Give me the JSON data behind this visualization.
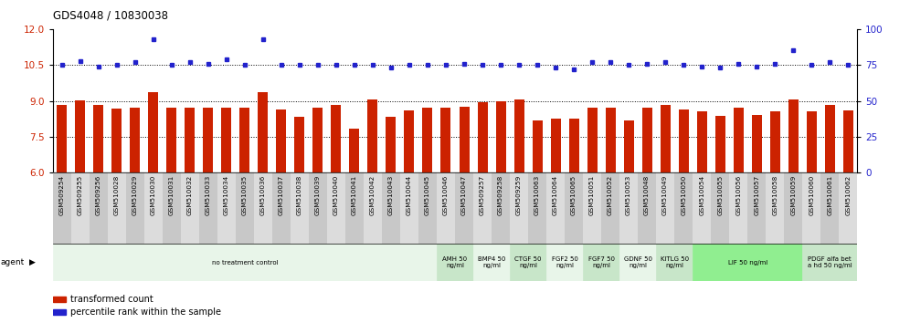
{
  "title": "GDS4048 / 10830038",
  "samples": [
    "GSM509254",
    "GSM509255",
    "GSM509256",
    "GSM510028",
    "GSM510029",
    "GSM510030",
    "GSM510031",
    "GSM510032",
    "GSM510033",
    "GSM510034",
    "GSM510035",
    "GSM510036",
    "GSM510037",
    "GSM510038",
    "GSM510039",
    "GSM510040",
    "GSM510041",
    "GSM510042",
    "GSM510043",
    "GSM510044",
    "GSM510045",
    "GSM510046",
    "GSM510047",
    "GSM509257",
    "GSM509258",
    "GSM509259",
    "GSM510063",
    "GSM510064",
    "GSM510065",
    "GSM510051",
    "GSM510052",
    "GSM510053",
    "GSM510048",
    "GSM510049",
    "GSM510050",
    "GSM510054",
    "GSM510055",
    "GSM510056",
    "GSM510057",
    "GSM510058",
    "GSM510059",
    "GSM510060",
    "GSM510061",
    "GSM510062"
  ],
  "bar_values": [
    8.85,
    9.02,
    8.82,
    8.67,
    8.72,
    9.35,
    8.72,
    8.72,
    8.72,
    8.72,
    8.72,
    9.35,
    8.65,
    8.35,
    8.72,
    8.82,
    7.85,
    9.05,
    8.35,
    8.62,
    8.72,
    8.72,
    8.75,
    8.95,
    9.0,
    9.05,
    8.2,
    8.28,
    8.25,
    8.72,
    8.72,
    8.2,
    8.72,
    8.82,
    8.65,
    8.55,
    8.38,
    8.72,
    8.42,
    8.58,
    9.05,
    8.55,
    8.82,
    8.62
  ],
  "dot_values_right": [
    75,
    78,
    74,
    75,
    77,
    93,
    75,
    77,
    76,
    79,
    75,
    93,
    75,
    75,
    75,
    75,
    75,
    75,
    73,
    75,
    75,
    75,
    76,
    75,
    75,
    75,
    75,
    73,
    72,
    77,
    77,
    75,
    76,
    77,
    75,
    74,
    73,
    76,
    74,
    76,
    85,
    75,
    77,
    75
  ],
  "agents": [
    {
      "label": "no treatment control",
      "start": 0,
      "end": 21,
      "color": "#e8f5e9"
    },
    {
      "label": "AMH 50\nng/ml",
      "start": 21,
      "end": 23,
      "color": "#c8e6c9"
    },
    {
      "label": "BMP4 50\nng/ml",
      "start": 23,
      "end": 25,
      "color": "#e8f5e9"
    },
    {
      "label": "CTGF 50\nng/ml",
      "start": 25,
      "end": 27,
      "color": "#c8e6c9"
    },
    {
      "label": "FGF2 50\nng/ml",
      "start": 27,
      "end": 29,
      "color": "#e8f5e9"
    },
    {
      "label": "FGF7 50\nng/ml",
      "start": 29,
      "end": 31,
      "color": "#c8e6c9"
    },
    {
      "label": "GDNF 50\nng/ml",
      "start": 31,
      "end": 33,
      "color": "#e8f5e9"
    },
    {
      "label": "KITLG 50\nng/ml",
      "start": 33,
      "end": 35,
      "color": "#c8e6c9"
    },
    {
      "label": "LIF 50 ng/ml",
      "start": 35,
      "end": 41,
      "color": "#90ee90"
    },
    {
      "label": "PDGF alfa bet\na hd 50 ng/ml",
      "start": 41,
      "end": 44,
      "color": "#c8e6c9"
    }
  ],
  "bar_color": "#cc2200",
  "dot_color": "#2222cc",
  "ylim_left": [
    6,
    12
  ],
  "ylim_right": [
    0,
    100
  ],
  "yticks_left": [
    6,
    7.5,
    9,
    10.5,
    12
  ],
  "yticks_right": [
    0,
    25,
    50,
    75,
    100
  ],
  "hlines": [
    7.5,
    9.0,
    10.5
  ]
}
